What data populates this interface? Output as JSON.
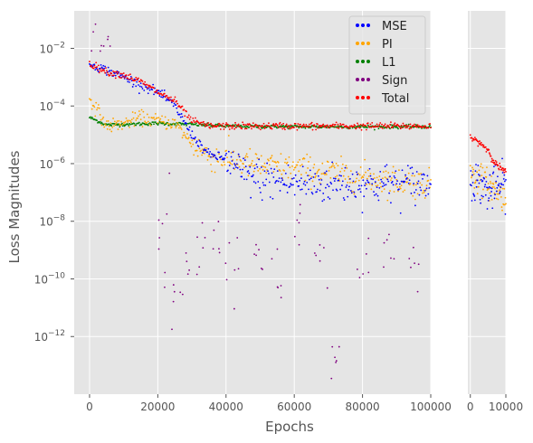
{
  "chart_data": {
    "type": "scatter",
    "title": "",
    "xlabel": "Epochs",
    "ylabel": "Loss Magnitudes",
    "yscale": "log",
    "ylim": [
      1e-14,
      0.2
    ],
    "grid": true,
    "legend_position": "top-right",
    "y_ticks": [
      {
        "value": 0.01,
        "base": "10",
        "exp": "−2"
      },
      {
        "value": 0.0001,
        "base": "10",
        "exp": "−4"
      },
      {
        "value": 1e-06,
        "base": "10",
        "exp": "−6"
      },
      {
        "value": 1e-08,
        "base": "10",
        "exp": "−8"
      },
      {
        "value": 1e-10,
        "base": "10",
        "exp": "−10"
      },
      {
        "value": 1e-12,
        "base": "10",
        "exp": "−12"
      }
    ],
    "panels": [
      {
        "name": "main",
        "xlim": [
          -4500,
          100000
        ],
        "x_ticks": [
          0,
          20000,
          40000,
          60000,
          80000,
          100000
        ],
        "x_tick_labels": [
          "0",
          "20000",
          "40000",
          "60000",
          "80000",
          "100000"
        ]
      },
      {
        "name": "inset",
        "xlim": [
          -700,
          10000
        ],
        "x_ticks": [
          0,
          10000
        ],
        "x_tick_labels": [
          "0",
          "10000"
        ]
      }
    ],
    "series": [
      {
        "name": "MSE",
        "color": "#0000ff",
        "points": [
          [
            0,
            0.003
          ],
          [
            10000,
            0.001
          ],
          [
            20000,
            0.0003
          ],
          [
            25000,
            0.0001
          ],
          [
            30000,
            1e-05
          ],
          [
            35000,
            2e-06
          ],
          [
            40000,
            1.5e-06
          ],
          [
            45000,
            4e-07
          ],
          [
            50000,
            3e-07
          ],
          [
            55000,
            2.5e-07
          ],
          [
            60000,
            2e-07
          ],
          [
            70000,
            2e-07
          ],
          [
            80000,
            2e-07
          ],
          [
            90000,
            2e-07
          ],
          [
            100000,
            2e-07
          ]
        ]
      },
      {
        "name": "PI",
        "color": "#ffa500",
        "points": [
          [
            0,
            0.0002
          ],
          [
            5000,
            2e-05
          ],
          [
            10000,
            2.5e-05
          ],
          [
            15000,
            4e-05
          ],
          [
            20000,
            3e-05
          ],
          [
            25000,
            2.5e-05
          ],
          [
            30000,
            5e-06
          ],
          [
            35000,
            1.8e-06
          ],
          [
            40000,
            1.5e-06
          ],
          [
            50000,
            8e-07
          ],
          [
            60000,
            7e-07
          ],
          [
            70000,
            5e-07
          ],
          [
            80000,
            3.5e-07
          ],
          [
            90000,
            2.5e-07
          ],
          [
            100000,
            1.8e-07
          ]
        ]
      },
      {
        "name": "L1",
        "color": "#008000",
        "points": [
          [
            0,
            4e-05
          ],
          [
            5000,
            2.2e-05
          ],
          [
            10000,
            2.3e-05
          ],
          [
            20000,
            2.5e-05
          ],
          [
            30000,
            2.3e-05
          ],
          [
            40000,
            2e-05
          ],
          [
            60000,
            1.9e-05
          ],
          [
            80000,
            1.9e-05
          ],
          [
            100000,
            1.9e-05
          ]
        ]
      },
      {
        "name": "Sign",
        "color": "#800080",
        "points": [
          [
            0,
            0.03
          ],
          [
            5000,
            0.004
          ],
          [
            22000,
            1e-08
          ],
          [
            23000,
            5e-11
          ],
          [
            28000,
            1e-10
          ],
          [
            32000,
            8e-10
          ],
          [
            38000,
            2e-09
          ],
          [
            42000,
            5e-10
          ],
          [
            50000,
            1e-09
          ],
          [
            55000,
            1e-10
          ],
          [
            60000,
            5e-09
          ],
          [
            68000,
            2e-10
          ],
          [
            72000,
            1.5e-13
          ],
          [
            80000,
            3e-10
          ],
          [
            88000,
            1e-09
          ],
          [
            95000,
            2e-10
          ]
        ]
      },
      {
        "name": "Total",
        "color": "#ff0000",
        "points": [
          [
            0,
            0.003
          ],
          [
            5000,
            0.0015
          ],
          [
            10000,
            0.0012
          ],
          [
            15000,
            0.0007
          ],
          [
            20000,
            0.0003
          ],
          [
            25000,
            0.00015
          ],
          [
            30000,
            3e-05
          ],
          [
            35000,
            2e-05
          ],
          [
            40000,
            2e-05
          ],
          [
            60000,
            2e-05
          ],
          [
            80000,
            2e-05
          ],
          [
            100000,
            2e-05
          ]
        ]
      }
    ],
    "inset_series": [
      {
        "name": "MSE",
        "color": "#0000ff",
        "points": [
          [
            0,
            3e-07
          ],
          [
            3000,
            2e-07
          ],
          [
            5000,
            1e-07
          ],
          [
            7000,
            1.5e-07
          ],
          [
            10000,
            2e-07
          ]
        ]
      },
      {
        "name": "PI",
        "color": "#ffa500",
        "points": [
          [
            0,
            4e-07
          ],
          [
            3000,
            3e-07
          ],
          [
            5000,
            2e-07
          ],
          [
            8000,
            1e-07
          ],
          [
            10000,
            5e-08
          ]
        ]
      },
      {
        "name": "Total",
        "color": "#ff0000",
        "points": [
          [
            0,
            8e-06
          ],
          [
            3000,
            5e-06
          ],
          [
            5000,
            3e-06
          ],
          [
            7000,
            1e-06
          ],
          [
            10000,
            5e-07
          ]
        ]
      }
    ]
  }
}
